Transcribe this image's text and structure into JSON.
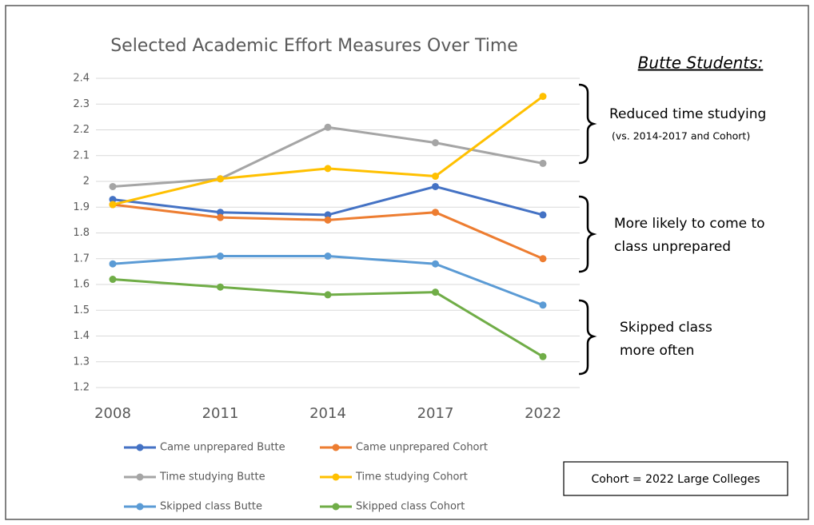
{
  "chart_data": {
    "type": "line",
    "title": "Selected Academic Effort Measures Over Time",
    "subtitle": "Butte Students:",
    "categories": [
      "2008",
      "2011",
      "2014",
      "2017",
      "2022"
    ],
    "series": [
      {
        "name": "Came unprepared Butte",
        "color": "#4472c4",
        "values": [
          1.93,
          1.88,
          1.87,
          1.98,
          1.87
        ]
      },
      {
        "name": "Came unprepared Cohort",
        "color": "#ed7d31",
        "values": [
          1.91,
          1.86,
          1.85,
          1.88,
          1.7
        ]
      },
      {
        "name": "Time studying Butte",
        "color": "#a5a5a5",
        "values": [
          1.98,
          2.01,
          2.21,
          2.15,
          2.07
        ]
      },
      {
        "name": "Time studying Cohort",
        "color": "#ffc000",
        "values": [
          1.91,
          2.01,
          2.05,
          2.02,
          2.33
        ]
      },
      {
        "name": "Skipped class Butte",
        "color": "#5b9bd5",
        "values": [
          1.68,
          1.71,
          1.71,
          1.68,
          1.52
        ]
      },
      {
        "name": "Skipped class Cohort",
        "color": "#70ad47",
        "values": [
          1.62,
          1.59,
          1.56,
          1.57,
          1.32
        ]
      }
    ],
    "ylim": [
      1.2,
      2.4
    ],
    "yticks": [
      1.2,
      1.3,
      1.4,
      1.5,
      1.6,
      1.7,
      1.8,
      1.9,
      2,
      2.1,
      2.2,
      2.3,
      2.4
    ],
    "grid": true,
    "legend": "bottom",
    "annotations": [
      {
        "lines": [
          "Reduced time studying"
        ],
        "small": "(vs. 2014-2017 and Cohort)"
      },
      {
        "lines": [
          "More likely to come to",
          "class unprepared"
        ]
      },
      {
        "lines": [
          "Skipped class",
          "more often"
        ]
      }
    ],
    "note": "Cohort = 2022 Large Colleges"
  }
}
